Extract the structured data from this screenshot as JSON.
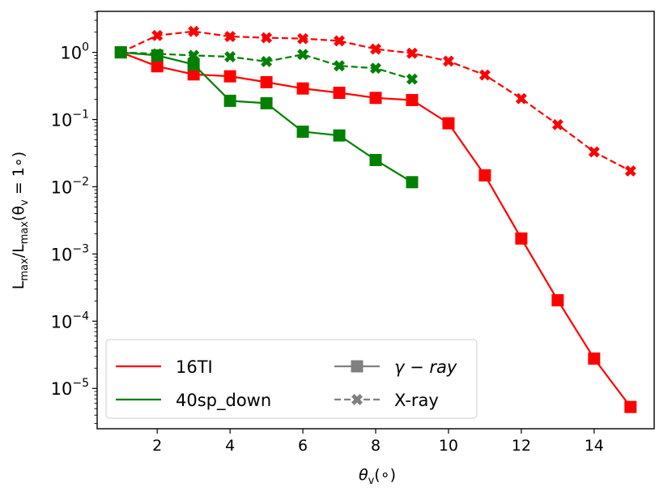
{
  "colors": {
    "red": "#ff0000",
    "green": "#008000",
    "gray": "#808080",
    "axis": "#000000"
  },
  "chart_data": {
    "type": "line",
    "xlabel_main": "θ",
    "xlabel_sub": "v",
    "xlabel_tail": "(∘)",
    "ylabel_parts": {
      "L": "L",
      "sub1": "max",
      "slash": "/L",
      "sub2": "max",
      "open": "(θ",
      "sub3": "v",
      "close": " = 1∘)"
    },
    "xlim": [
      0.35,
      15.65
    ],
    "ylim_log10": [
      -5.6,
      0.61
    ],
    "x_ticks": [
      2,
      4,
      6,
      8,
      10,
      12,
      14
    ],
    "y_ticks": [
      {
        "base": "10",
        "exp": "0",
        "value": 0
      },
      {
        "base": "10",
        "exp": "−1",
        "value": -1
      },
      {
        "base": "10",
        "exp": "−2",
        "value": -2
      },
      {
        "base": "10",
        "exp": "−3",
        "value": -3
      },
      {
        "base": "10",
        "exp": "−4",
        "value": -4
      },
      {
        "base": "10",
        "exp": "−5",
        "value": -5
      }
    ],
    "series": [
      {
        "name": "16TI",
        "band": "γ−ray",
        "color": "red",
        "marker": "square",
        "style": "solid",
        "x": [
          1,
          2,
          3,
          4,
          5,
          6,
          7,
          8,
          9,
          10,
          11,
          12,
          13,
          14,
          15
        ],
        "y": [
          1.0,
          0.62,
          0.47,
          0.44,
          0.36,
          0.29,
          0.25,
          0.21,
          0.195,
          0.088,
          0.0148,
          0.0017,
          0.000205,
          2.78e-05,
          5.3e-06
        ]
      },
      {
        "name": "16TI",
        "band": "X−ray",
        "color": "red",
        "marker": "x",
        "style": "dashed",
        "x": [
          1,
          2,
          3,
          4,
          5,
          6,
          7,
          8,
          9,
          10,
          11,
          12,
          13,
          14,
          15
        ],
        "y": [
          1.0,
          1.78,
          2.05,
          1.72,
          1.65,
          1.6,
          1.48,
          1.12,
          0.97,
          0.74,
          0.46,
          0.205,
          0.084,
          0.033,
          0.0172
        ]
      },
      {
        "name": "40sp_down",
        "band": "γ−ray",
        "color": "green",
        "marker": "square",
        "style": "solid",
        "x": [
          1,
          2,
          3,
          4,
          5,
          6,
          7,
          8,
          9
        ],
        "y": [
          1.0,
          0.9,
          0.66,
          0.19,
          0.175,
          0.066,
          0.058,
          0.025,
          0.0117
        ]
      },
      {
        "name": "40sp_down",
        "band": "X−ray",
        "color": "green",
        "marker": "x",
        "style": "dashed",
        "x": [
          1,
          2,
          3,
          4,
          5,
          6,
          7,
          8,
          9
        ],
        "y": [
          1.0,
          0.95,
          0.9,
          0.86,
          0.73,
          0.93,
          0.63,
          0.58,
          0.4
        ]
      }
    ],
    "legend": {
      "placement": "lower-left",
      "entries": [
        {
          "label": "16TI",
          "color": "red",
          "kind": "line"
        },
        {
          "label": "40sp_down",
          "color": "green",
          "kind": "line"
        },
        {
          "label": "γ − ray",
          "color": "gray",
          "kind": "square-solid"
        },
        {
          "label": "X-ray",
          "color": "gray",
          "kind": "x-dashed"
        }
      ]
    }
  }
}
